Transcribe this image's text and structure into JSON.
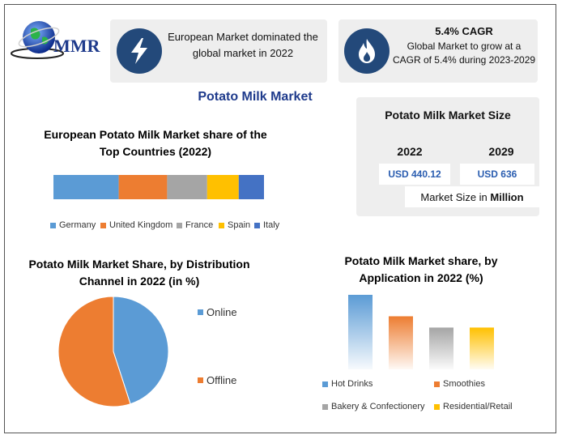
{
  "logo": {
    "text": "MMR"
  },
  "card1": {
    "text": "European Market dominated the global market in 2022",
    "icon": "lightning-icon"
  },
  "card2": {
    "title": "5.4% CAGR",
    "text": "Global Market to grow at a CAGR of 5.4% during 2023-2029",
    "icon": "flame-icon"
  },
  "main_title": "Potato Milk Market",
  "market_size": {
    "title": "Potato Milk Market Size",
    "year1": "2022",
    "year2": "2029",
    "value1": "USD 440.12",
    "value2": "USD 636",
    "note_prefix": "Market Size in ",
    "note_bold": "Million"
  },
  "colors": {
    "blue": "#5b9bd5",
    "orange": "#ed7d31",
    "gray": "#a5a5a5",
    "yellow": "#ffc000",
    "darkblue": "#4472c4",
    "navy": "#23497a"
  },
  "chart_data": [
    {
      "type": "bar",
      "orientation": "horizontal-stacked",
      "title": "European Potato Milk Market share of the Top Countries (2022)",
      "categories": [
        "Germany",
        "United Kingdom",
        "France",
        "Spain",
        "Italy"
      ],
      "values": [
        31,
        23,
        19,
        15,
        12
      ],
      "colors": [
        "#5b9bd5",
        "#ed7d31",
        "#a5a5a5",
        "#ffc000",
        "#4472c4"
      ],
      "legend": "bottom"
    },
    {
      "type": "pie",
      "title": "Potato Milk Market Share, by Distribution Channel in 2022 (in %)",
      "categories": [
        "Online",
        "Offline"
      ],
      "values": [
        45,
        55
      ],
      "colors": [
        "#5b9bd5",
        "#ed7d31"
      ],
      "legend": "right"
    },
    {
      "type": "bar",
      "title": "Potato Milk Market share, by Application in 2022 (%)",
      "categories": [
        "Hot Drinks",
        "Smoothies",
        "Bakery & Confectionery",
        "Residential/Retail"
      ],
      "values": [
        33,
        23.5,
        18.5,
        18.5
      ],
      "colors": [
        "#5b9bd5",
        "#ed7d31",
        "#a5a5a5",
        "#ffc000"
      ],
      "ylim": [
        0,
        33
      ],
      "legend": "bottom"
    }
  ]
}
